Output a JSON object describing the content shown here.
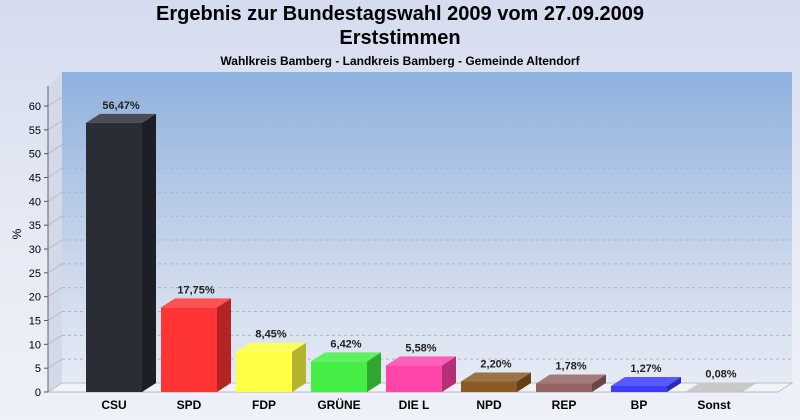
{
  "chart_data": {
    "type": "bar",
    "title": "Ergebnis zur Bundestagswahl 2009 vom 27.09.2009",
    "title2": "Erststimmen",
    "subtitle": "Wahlkreis Bamberg - Landkreis Bamberg - Gemeinde Altendorf",
    "ylabel": "%",
    "xlabel": "",
    "ylim": [
      0,
      65
    ],
    "yticks": [
      "0",
      "5",
      "10",
      "15",
      "20",
      "25",
      "30",
      "35",
      "40",
      "45",
      "50",
      "55",
      "60"
    ],
    "grid": true,
    "categories": [
      "CSU",
      "SPD",
      "FDP",
      "GRÜNE",
      "DIE L",
      "NPD",
      "REP",
      "BP",
      "Sonst"
    ],
    "values": [
      56.47,
      17.75,
      8.45,
      6.42,
      5.58,
      2.2,
      1.78,
      1.27,
      0.08
    ],
    "labels": [
      "56,47%",
      "17,75%",
      "8,45%",
      "6,42%",
      "5,58%",
      "2,20%",
      "1,78%",
      "1,27%",
      "0,08%"
    ],
    "colors": [
      "#2a2d36",
      "#ff3434",
      "#ffff44",
      "#44ee44",
      "#ff44aa",
      "#8a5a24",
      "#946464",
      "#3c3cff",
      "#c0c0c0"
    ]
  }
}
